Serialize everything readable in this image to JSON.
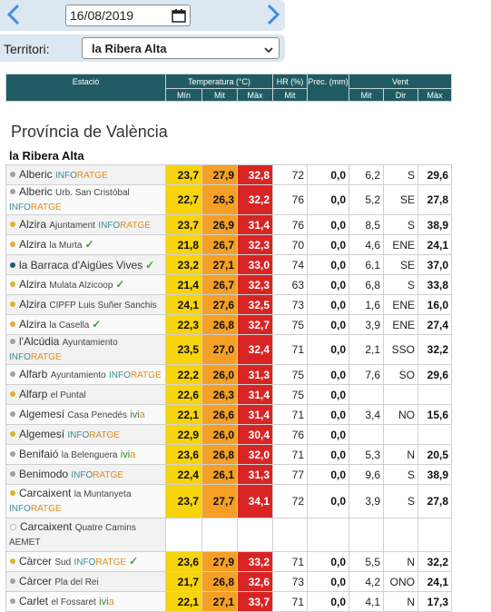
{
  "date": {
    "value": "16/08/2019"
  },
  "territory": {
    "label": "Territori:",
    "selected": "la Ribera Alta"
  },
  "headers": {
    "estacio": "Estació",
    "temperatura": "Temperatura (°C)",
    "hr": "HR (%)",
    "prec": "Prec. (mm)",
    "vent": "Vent",
    "min": "Mín",
    "mit": "Mit",
    "max": "Màx",
    "hr_mit": "Mit",
    "v_mit": "Mit",
    "v_dir": "Dir",
    "v_max": "Màx"
  },
  "province": "Província de València",
  "region": "la Ribera Alta",
  "colors": {
    "tmin": "#f7d40c",
    "tmit": "#f5a024",
    "tmax": "#d82524",
    "header": "#205b63"
  },
  "rows": [
    {
      "name": "Alberic",
      "sub": "",
      "tag": "INFORATGE",
      "tag2": "",
      "check": false,
      "dot": "#a0a0a0",
      "h": 22,
      "tmin": "23,7",
      "tmit": "27,9",
      "tmax": "32,8",
      "hr": "72",
      "prec": "0,0",
      "vmit": "6,2",
      "vdir": "S",
      "vmax": "29,6"
    },
    {
      "name": "Alberic",
      "sub": "Urb. San Cristóbal",
      "tag": "INFORATGE",
      "tag2": "",
      "check": false,
      "dot": "#a0a0a0",
      "h": 33,
      "tmin": "22,7",
      "tmit": "26,3",
      "tmax": "32,2",
      "hr": "76",
      "prec": "0,0",
      "vmit": "5,2",
      "vdir": "SE",
      "vmax": "27,8"
    },
    {
      "name": "Alzira",
      "sub": "Ajuntament",
      "tag": "INFORATGE",
      "tag2": "",
      "check": false,
      "dot": "#e0b030",
      "h": 22,
      "tmin": "23,7",
      "tmit": "26,9",
      "tmax": "31,4",
      "hr": "76",
      "prec": "0,0",
      "vmit": "8,5",
      "vdir": "S",
      "vmax": "38,9"
    },
    {
      "name": "Alzira",
      "sub": "la Murta",
      "tag": "",
      "tag2": "",
      "check": true,
      "dot": "#e0b030",
      "h": 22,
      "tmin": "21,8",
      "tmit": "26,7",
      "tmax": "32,3",
      "hr": "70",
      "prec": "0,0",
      "vmit": "4,6",
      "vdir": "ENE",
      "vmax": "24,1"
    },
    {
      "name": "la Barraca d'Aigües Vives",
      "sub": "",
      "tag": "",
      "tag2": "",
      "check": true,
      "dot": "#205b63",
      "h": 22,
      "tmin": "23,2",
      "tmit": "27,1",
      "tmax": "33,0",
      "hr": "74",
      "prec": "0,0",
      "vmit": "6,1",
      "vdir": "SE",
      "vmax": "37,0"
    },
    {
      "name": "Alzira",
      "sub": "Mulata Alzicoop",
      "tag": "",
      "tag2": "",
      "check": true,
      "dot": "#e0b030",
      "h": 22,
      "tmin": "21,4",
      "tmit": "26,7",
      "tmax": "32,3",
      "hr": "63",
      "prec": "0,0",
      "vmit": "6,8",
      "vdir": "S",
      "vmax": "33,8"
    },
    {
      "name": "Alzira",
      "sub": "CIPFP Luis Suñer Sanchis",
      "tag": "",
      "tag2": "",
      "check": false,
      "dot": "#e0b030",
      "h": 22,
      "tmin": "24,1",
      "tmit": "27,6",
      "tmax": "32,5",
      "hr": "73",
      "prec": "0,0",
      "vmit": "1,6",
      "vdir": "ENE",
      "vmax": "16,0"
    },
    {
      "name": "Alzira",
      "sub": "la Casella",
      "tag": "",
      "tag2": "",
      "check": true,
      "dot": "#e0b030",
      "h": 22,
      "tmin": "22,3",
      "tmit": "26,8",
      "tmax": "32,7",
      "hr": "75",
      "prec": "0,0",
      "vmit": "3,9",
      "vdir": "ENE",
      "vmax": "27,4"
    },
    {
      "name": "l'Alcúdia",
      "sub": "Ayuntamiento",
      "tag": "INFORATGE",
      "tag2": "",
      "check": false,
      "dot": "#a0a0a0",
      "h": 22,
      "tmin": "23,5",
      "tmit": "27,0",
      "tmax": "32,4",
      "hr": "71",
      "prec": "0,0",
      "vmit": "2,1",
      "vdir": "SSO",
      "vmax": "32,2"
    },
    {
      "name": "Alfarb",
      "sub": "Ayuntamiento",
      "tag": "INFORATGE",
      "tag2": "",
      "check": false,
      "dot": "#a0a0a0",
      "h": 22,
      "tmin": "22,2",
      "tmit": "26,0",
      "tmax": "31,3",
      "hr": "75",
      "prec": "0,0",
      "vmit": "7,6",
      "vdir": "SO",
      "vmax": "29,6"
    },
    {
      "name": "Alfarp",
      "sub": "el Puntal",
      "tag": "",
      "tag2": "",
      "check": false,
      "dot": "#e0b030",
      "h": 22,
      "tmin": "22,6",
      "tmit": "26,3",
      "tmax": "31,4",
      "hr": "75",
      "prec": "0,0",
      "vmit": "",
      "vdir": "",
      "vmax": ""
    },
    {
      "name": "Algemesí",
      "sub": "Casa Penedés",
      "tag": "",
      "tag2": "ivia",
      "check": false,
      "dot": "#a0a0a0",
      "h": 22,
      "tmin": "22,1",
      "tmit": "26,6",
      "tmax": "31,4",
      "hr": "71",
      "prec": "0,0",
      "vmit": "3,4",
      "vdir": "NO",
      "vmax": "15,6"
    },
    {
      "name": "Algemesí",
      "sub": "",
      "tag": "INFORATGE",
      "tag2": "",
      "check": false,
      "dot": "#e0b030",
      "h": 22,
      "tmin": "22,9",
      "tmit": "26,0",
      "tmax": "30,4",
      "hr": "76",
      "prec": "0,0",
      "vmit": "",
      "vdir": "",
      "vmax": ""
    },
    {
      "name": "Benifaió",
      "sub": "la Belenguera",
      "tag": "",
      "tag2": "ivia",
      "check": false,
      "dot": "#a0a0a0",
      "h": 22,
      "tmin": "23,6",
      "tmit": "26,8",
      "tmax": "32,0",
      "hr": "71",
      "prec": "0,0",
      "vmit": "5,3",
      "vdir": "N",
      "vmax": "20,5"
    },
    {
      "name": "Benimodo",
      "sub": "",
      "tag": "INFORATGE",
      "tag2": "",
      "check": false,
      "dot": "#a0a0a0",
      "h": 22,
      "tmin": "22,4",
      "tmit": "26,1",
      "tmax": "31,3",
      "hr": "77",
      "prec": "0,0",
      "vmit": "9,6",
      "vdir": "S",
      "vmax": "38,9"
    },
    {
      "name": "Carcaixent",
      "sub": "la Muntanyeta",
      "tag": "INFORATGE",
      "tag2": "",
      "check": false,
      "dot": "#e0b030",
      "h": 37,
      "tmin": "23,7",
      "tmit": "27,7",
      "tmax": "34,1",
      "hr": "72",
      "prec": "0,0",
      "vmit": "3,9",
      "vdir": "S",
      "vmax": "27,8"
    },
    {
      "name": "Carcaixent",
      "sub": "Quatre Camins",
      "tag": "AEMET",
      "tag2": "",
      "check": false,
      "dot": "#ffffff",
      "h": 37,
      "tmin": "",
      "tmit": "",
      "tmax": "",
      "hr": "",
      "prec": "",
      "vmit": "",
      "vdir": "",
      "vmax": ""
    },
    {
      "name": "Càrcer",
      "sub": "Sud",
      "tag": "INFORATGE",
      "tag2": "",
      "check": true,
      "dot": "#e0b030",
      "h": 22,
      "tmin": "23,6",
      "tmit": "27,9",
      "tmax": "33,2",
      "hr": "71",
      "prec": "0,0",
      "vmit": "5,5",
      "vdir": "N",
      "vmax": "32,2"
    },
    {
      "name": "Càrcer",
      "sub": "Pla del Rei",
      "tag": "",
      "tag2": "",
      "check": false,
      "dot": "#a0a0a0",
      "h": 22,
      "tmin": "21,7",
      "tmit": "26,8",
      "tmax": "32,6",
      "hr": "73",
      "prec": "0,0",
      "vmit": "4,2",
      "vdir": "ONO",
      "vmax": "24,1"
    },
    {
      "name": "Carlet",
      "sub": "el Fossaret",
      "tag": "",
      "tag2": "ivia",
      "check": false,
      "dot": "#a0a0a0",
      "h": 22,
      "tmin": "22,1",
      "tmit": "27,1",
      "tmax": "33,7",
      "hr": "71",
      "prec": "0,0",
      "vmit": "4,1",
      "vdir": "N",
      "vmax": "17,3"
    }
  ]
}
